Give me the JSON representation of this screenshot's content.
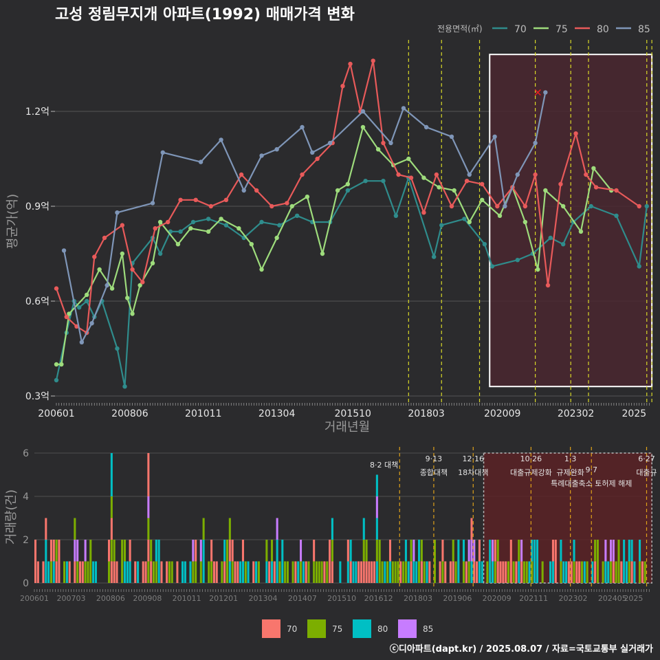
{
  "chart_data": [
    {
      "type": "line",
      "title": "고성 정림무지개 아파트(1992) 매매가격 변화",
      "xlabel": "거래년월",
      "ylabel": "평균가(억)",
      "x_ticks": [
        "200601",
        "200806",
        "201011",
        "201304",
        "201510",
        "201803",
        "202009",
        "202302",
        "2025"
      ],
      "y_ticks": [
        "0.3억",
        "0.6억",
        "0.9억",
        "1.2억"
      ],
      "ylim": [
        0.3,
        1.4
      ],
      "xlim": [
        "2006-01",
        "2025-08"
      ],
      "legend_title": "전용면적(㎡)",
      "legend_position": "top-right",
      "grid": true,
      "series": [
        {
          "name": "70",
          "color": "#2f8c8c",
          "points": [
            [
              "2006-01",
              0.35
            ],
            [
              "2006-05",
              0.5
            ],
            [
              "2006-08",
              0.6
            ],
            [
              "2006-10",
              0.58
            ],
            [
              "2007-01",
              0.6
            ],
            [
              "2007-04",
              0.55
            ],
            [
              "2007-07",
              0.6
            ],
            [
              "2008-01",
              0.45
            ],
            [
              "2008-04",
              0.33
            ],
            [
              "2008-07",
              0.72
            ],
            [
              "2009-03",
              0.8
            ],
            [
              "2009-06",
              0.75
            ],
            [
              "2009-10",
              0.82
            ],
            [
              "2010-02",
              0.82
            ],
            [
              "2010-07",
              0.85
            ],
            [
              "2011-01",
              0.86
            ],
            [
              "2011-08",
              0.84
            ],
            [
              "2012-03",
              0.8
            ],
            [
              "2012-10",
              0.85
            ],
            [
              "2013-05",
              0.84
            ],
            [
              "2013-12",
              0.87
            ],
            [
              "2014-06",
              0.85
            ],
            [
              "2015-01",
              0.85
            ],
            [
              "2015-08",
              0.95
            ],
            [
              "2016-03",
              0.98
            ],
            [
              "2016-10",
              0.98
            ],
            [
              "2017-03",
              0.87
            ],
            [
              "2017-08",
              0.99
            ],
            [
              "2018-06",
              0.74
            ],
            [
              "2018-09",
              0.84
            ],
            [
              "2019-06",
              0.86
            ],
            [
              "2020-02",
              0.78
            ],
            [
              "2020-05",
              0.71
            ],
            [
              "2021-03",
              0.73
            ],
            [
              "2021-09",
              0.75
            ],
            [
              "2022-04",
              0.8
            ],
            [
              "2022-09",
              0.78
            ],
            [
              "2023-01",
              0.85
            ],
            [
              "2023-08",
              0.9
            ],
            [
              "2024-06",
              0.87
            ],
            [
              "2025-03",
              0.71
            ],
            [
              "2025-06",
              0.9
            ]
          ]
        },
        {
          "name": "75",
          "color": "#9edc7c",
          "points": [
            [
              "2006-01",
              0.4
            ],
            [
              "2006-03",
              0.4
            ],
            [
              "2006-06",
              0.56
            ],
            [
              "2007-01",
              0.62
            ],
            [
              "2007-06",
              0.7
            ],
            [
              "2007-11",
              0.64
            ],
            [
              "2008-03",
              0.75
            ],
            [
              "2008-05",
              0.61
            ],
            [
              "2008-07",
              0.56
            ],
            [
              "2008-10",
              0.65
            ],
            [
              "2009-03",
              0.72
            ],
            [
              "2009-06",
              0.85
            ],
            [
              "2010-01",
              0.78
            ],
            [
              "2010-06",
              0.83
            ],
            [
              "2011-01",
              0.82
            ],
            [
              "2011-06",
              0.86
            ],
            [
              "2012-01",
              0.83
            ],
            [
              "2012-06",
              0.78
            ],
            [
              "2012-10",
              0.7
            ],
            [
              "2013-04",
              0.8
            ],
            [
              "2013-10",
              0.9
            ],
            [
              "2014-04",
              0.93
            ],
            [
              "2014-10",
              0.75
            ],
            [
              "2015-04",
              0.95
            ],
            [
              "2015-08",
              0.97
            ],
            [
              "2016-02",
              1.15
            ],
            [
              "2016-08",
              1.08
            ],
            [
              "2017-02",
              1.03
            ],
            [
              "2017-08",
              1.05
            ],
            [
              "2018-02",
              0.99
            ],
            [
              "2018-08",
              0.96
            ],
            [
              "2019-02",
              0.95
            ],
            [
              "2019-08",
              0.85
            ],
            [
              "2020-01",
              0.92
            ],
            [
              "2020-08",
              0.87
            ],
            [
              "2021-01",
              0.96
            ],
            [
              "2021-06",
              0.85
            ],
            [
              "2021-11",
              0.7
            ],
            [
              "2022-02",
              0.95
            ],
            [
              "2022-09",
              0.9
            ],
            [
              "2023-04",
              0.82
            ],
            [
              "2023-09",
              1.02
            ],
            [
              "2024-04",
              0.95
            ]
          ]
        },
        {
          "name": "80",
          "color": "#e85a5a",
          "points": [
            [
              "2006-01",
              0.64
            ],
            [
              "2006-05",
              0.55
            ],
            [
              "2006-09",
              0.52
            ],
            [
              "2007-01",
              0.5
            ],
            [
              "2007-04",
              0.74
            ],
            [
              "2007-08",
              0.8
            ],
            [
              "2008-03",
              0.84
            ],
            [
              "2008-07",
              0.7
            ],
            [
              "2008-11",
              0.66
            ],
            [
              "2009-04",
              0.83
            ],
            [
              "2009-09",
              0.85
            ],
            [
              "2010-02",
              0.92
            ],
            [
              "2010-08",
              0.92
            ],
            [
              "2011-02",
              0.9
            ],
            [
              "2011-08",
              0.92
            ],
            [
              "2012-02",
              1.0
            ],
            [
              "2012-08",
              0.95
            ],
            [
              "2013-02",
              0.9
            ],
            [
              "2013-08",
              0.91
            ],
            [
              "2014-02",
              1.0
            ],
            [
              "2014-08",
              1.05
            ],
            [
              "2015-02",
              1.1
            ],
            [
              "2015-06",
              1.28
            ],
            [
              "2015-09",
              1.35
            ],
            [
              "2016-01",
              1.2
            ],
            [
              "2016-06",
              1.36
            ],
            [
              "2016-10",
              1.1
            ],
            [
              "2017-04",
              1.0
            ],
            [
              "2017-09",
              0.99
            ],
            [
              "2018-02",
              0.88
            ],
            [
              "2018-07",
              1.0
            ],
            [
              "2019-01",
              0.9
            ],
            [
              "2019-07",
              0.98
            ],
            [
              "2020-01",
              0.97
            ],
            [
              "2020-07",
              0.9
            ],
            [
              "2021-01",
              0.96
            ],
            [
              "2021-06",
              0.9
            ],
            [
              "2021-10",
              1.0
            ],
            [
              "2022-03",
              0.65
            ],
            [
              "2022-08",
              0.97
            ],
            [
              "2023-02",
              1.13
            ],
            [
              "2023-06",
              1.0
            ],
            [
              "2023-10",
              0.96
            ],
            [
              "2024-06",
              0.95
            ],
            [
              "2025-03",
              0.9
            ]
          ]
        },
        {
          "name": "85",
          "color": "#7f96b8",
          "points": [
            [
              "2006-04",
              0.76
            ],
            [
              "2006-11",
              0.47
            ],
            [
              "2007-03",
              0.53
            ],
            [
              "2007-09",
              0.65
            ],
            [
              "2008-01",
              0.88
            ],
            [
              "2009-03",
              0.91
            ],
            [
              "2009-07",
              1.07
            ],
            [
              "2010-10",
              1.04
            ],
            [
              "2011-06",
              1.11
            ],
            [
              "2012-03",
              0.95
            ],
            [
              "2012-10",
              1.06
            ],
            [
              "2013-04",
              1.08
            ],
            [
              "2014-02",
              1.15
            ],
            [
              "2014-06",
              1.07
            ],
            [
              "2015-01",
              1.1
            ],
            [
              "2016-02",
              1.2
            ],
            [
              "2017-01",
              1.1
            ],
            [
              "2017-06",
              1.21
            ],
            [
              "2018-03",
              1.15
            ],
            [
              "2019-01",
              1.12
            ],
            [
              "2019-08",
              1.0
            ],
            [
              "2020-06",
              1.12
            ],
            [
              "2020-10",
              0.9
            ],
            [
              "2021-03",
              1.0
            ],
            [
              "2021-10",
              1.1
            ],
            [
              "2022-02",
              1.26
            ]
          ]
        }
      ],
      "marker_x": {
        "x": "2021-11",
        "y": 1.26,
        "color": "#e02020"
      },
      "policy_lines": [
        "2017-08",
        "2018-09",
        "2019-12",
        "2021-10",
        "2022-12",
        "2023-07",
        "2025-06",
        "2025-08"
      ],
      "highlight_box": {
        "x0": "2020-04",
        "x1": "2025-08",
        "y0": 0.33,
        "y1": 1.38
      }
    },
    {
      "type": "bar",
      "ylabel": "거래량(건)",
      "ylim": [
        0,
        6
      ],
      "y_ticks": [
        "0",
        "2",
        "4",
        "6"
      ],
      "x_ticks": [
        "200601",
        "200703",
        "200806",
        "200908",
        "201011",
        "201201",
        "201304",
        "201407",
        "201510",
        "201612",
        "201803",
        "201906",
        "202009",
        "202111",
        "202302",
        "202405",
        "2025"
      ],
      "legend": [
        {
          "name": "70",
          "color": "#f8766d"
        },
        {
          "name": "75",
          "color": "#7cae00"
        },
        {
          "name": "80",
          "color": "#00bfc4"
        },
        {
          "name": "85",
          "color": "#c77cff"
        }
      ],
      "policy_events": [
        {
          "x": "2017-08",
          "label": "8·2 대책"
        },
        {
          "x": "2018-09",
          "label": "9·13 종합대책"
        },
        {
          "x": "2019-12",
          "label": "12·16 18차대책"
        },
        {
          "x": "2021-10",
          "label": "10·26 대출규제강화"
        },
        {
          "x": "2023-01",
          "label": "1·3 규제완화"
        },
        {
          "x": "2023-09",
          "label": "9·7 특례대출축소 토허제 해제"
        },
        {
          "x": "2025-06",
          "label": "6·27 대출규"
        }
      ],
      "highlight_box": {
        "x0": "2020-04",
        "x1": "2025-08"
      }
    }
  ],
  "footer": "ⓒ디아파트(dapt.kr) / 2025.08.07 / 자료=국토교통부 실거래가"
}
